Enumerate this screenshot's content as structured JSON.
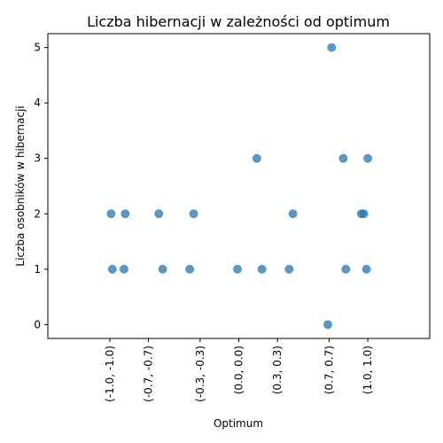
{
  "chart_data": {
    "type": "scatter",
    "title": "Liczba hibernacji w zależności od optimum",
    "xlabel": "Optimum",
    "ylabel": "Liczba osobników w hibernacji",
    "x_tick_values": [
      -1.0,
      -0.7,
      -0.3,
      0.0,
      0.3,
      0.7,
      1.0
    ],
    "x_tick_labels": [
      "(-1.0, -1.0)",
      "(-0.7, -0.7)",
      "(-0.3, -0.3)",
      "(0.0, 0.0)",
      "(0.3, 0.3)",
      "(0.7, 0.7)",
      "(1.0, 1.0)"
    ],
    "y_tick_values": [
      0,
      1,
      2,
      3,
      4,
      5
    ],
    "y_tick_labels": [
      "0",
      "1",
      "2",
      "3",
      "4",
      "5"
    ],
    "xlim": [
      -1.48,
      1.48
    ],
    "ylim": [
      -0.25,
      5.25
    ],
    "grid": false,
    "marker_color": "#1f77b4",
    "marker_alpha": 0.75,
    "points": [
      {
        "x": -0.99,
        "y": 2
      },
      {
        "x": -0.98,
        "y": 1
      },
      {
        "x": -0.88,
        "y": 2
      },
      {
        "x": -0.89,
        "y": 1
      },
      {
        "x": -0.62,
        "y": 2
      },
      {
        "x": -0.59,
        "y": 1
      },
      {
        "x": -0.35,
        "y": 2
      },
      {
        "x": -0.38,
        "y": 1
      },
      {
        "x": -0.01,
        "y": 1
      },
      {
        "x": 0.14,
        "y": 3
      },
      {
        "x": 0.18,
        "y": 1
      },
      {
        "x": 0.39,
        "y": 1
      },
      {
        "x": 0.42,
        "y": 2
      },
      {
        "x": 0.69,
        "y": 0
      },
      {
        "x": 0.72,
        "y": 5
      },
      {
        "x": 0.81,
        "y": 3
      },
      {
        "x": 0.83,
        "y": 1
      },
      {
        "x": 0.95,
        "y": 2
      },
      {
        "x": 0.97,
        "y": 2
      },
      {
        "x": 0.99,
        "y": 1
      },
      {
        "x": 1.0,
        "y": 3
      }
    ]
  }
}
